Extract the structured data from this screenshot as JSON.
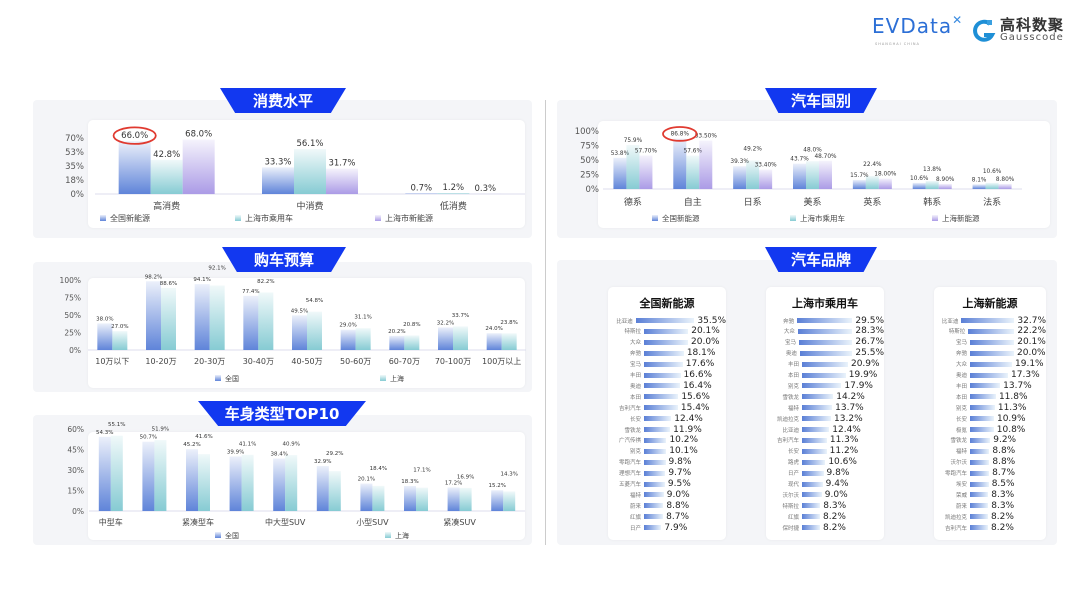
{
  "logos": {
    "evdata": "EVData",
    "evdata_sub": "SHANGHAI CHINA",
    "gausscode_cn": "高科数聚",
    "gausscode_en": "Gausscode"
  },
  "colors": {
    "banner": "#1238f0",
    "series1": "#5f84d9",
    "series2": "#86cbd3",
    "series3": "#ab9be6",
    "highlight": "#e03a30"
  },
  "chart_data": [
    {
      "id": "consumption",
      "title": "消费水平",
      "type": "bar",
      "yticks": [
        "0%",
        "18%",
        "35%",
        "53%",
        "70%"
      ],
      "ylim": [
        0,
        70
      ],
      "categories": [
        "高消费",
        "中消费",
        "低消费"
      ],
      "series": [
        {
          "name": "全国新能源",
          "values": [
            66.0,
            33.3,
            0.7
          ],
          "labels": [
            "66.0%",
            "33.3%",
            "0.7%"
          ]
        },
        {
          "name": "上海市乘用车",
          "values": [
            42.8,
            56.1,
            1.2
          ],
          "labels": [
            "42.8%",
            "56.1%",
            "1.2%"
          ]
        },
        {
          "name": "上海市新能源",
          "values": [
            68.0,
            31.7,
            0.3
          ],
          "labels": [
            "68.0%",
            "31.7%",
            "0.3%"
          ]
        }
      ],
      "highlight": {
        "series": 0,
        "category": 0
      }
    },
    {
      "id": "budget",
      "title": "购车预算",
      "type": "bar",
      "yticks": [
        "0%",
        "25%",
        "50%",
        "75%",
        "100%"
      ],
      "ylim": [
        0,
        100
      ],
      "categories": [
        "10万以下",
        "10-20万",
        "20-30万",
        "30-40万",
        "40-50万",
        "50-60万",
        "60-70万",
        "70-100万",
        "100万以上"
      ],
      "series": [
        {
          "name": "全国",
          "values": [
            38.0,
            98.2,
            94.1,
            77.4,
            49.5,
            29.0,
            20.2,
            32.2,
            24.0
          ],
          "labels": [
            "38.0%",
            "98.2%",
            "94.1%",
            "77.4%",
            "49.5%",
            "29.0%",
            "20.2%",
            "32.2%",
            "24.0%"
          ]
        },
        {
          "name": "上海",
          "values": [
            27.0,
            88.6,
            92.1,
            82.2,
            54.8,
            31.1,
            20.8,
            33.7,
            23.8
          ],
          "labels": [
            "27.0%",
            "88.6%",
            "92.1%",
            "82.2%",
            "54.8%",
            "31.1%",
            "20.8%",
            "33.7%",
            "23.8%"
          ]
        }
      ]
    },
    {
      "id": "bodytype",
      "title": "车身类型TOP10",
      "type": "bar",
      "yticks": [
        "0%",
        "15%",
        "30%",
        "45%",
        "60%"
      ],
      "ylim": [
        0,
        60
      ],
      "categories": [
        "中型车",
        "",
        "紧凑型车",
        "",
        "中大型SUV",
        "",
        "小型SUV",
        "",
        "紧凑SUV",
        ""
      ],
      "series": [
        {
          "name": "全国",
          "values": [
            54.3,
            50.7,
            45.2,
            39.9,
            38.4,
            32.9,
            20.1,
            18.3,
            17.2,
            15.2
          ],
          "labels": [
            "54.3%",
            "50.7%",
            "45.2%",
            "39.9%",
            "38.4%",
            "32.9%",
            "20.1%",
            "18.3%",
            "17.2%",
            "15.2%"
          ]
        },
        {
          "name": "上海",
          "values": [
            55.1,
            51.9,
            41.6,
            41.1,
            40.9,
            29.2,
            18.4,
            17.1,
            16.9,
            14.3
          ],
          "labels": [
            "55.1%",
            "51.9%",
            "41.6%",
            "41.1%",
            "40.9%",
            "29.2%",
            "18.4%",
            "17.1%",
            "16.9%",
            "14.3%"
          ]
        }
      ]
    },
    {
      "id": "origin",
      "title": "汽车国别",
      "type": "bar",
      "yticks": [
        "0%",
        "25%",
        "50%",
        "75%",
        "100%"
      ],
      "ylim": [
        0,
        100
      ],
      "categories": [
        "德系",
        "自主",
        "日系",
        "美系",
        "英系",
        "韩系",
        "法系"
      ],
      "series": [
        {
          "name": "全国新能源",
          "values": [
            53.8,
            86.8,
            39.3,
            43.7,
            15.7,
            10.6,
            8.1
          ],
          "labels": [
            "53.8%",
            "86.8%",
            "39.3%",
            "43.7%",
            "15.7%",
            "10.6%",
            "8.1%"
          ]
        },
        {
          "name": "上海市乘用车",
          "values": [
            75.9,
            57.6,
            49.2,
            48.0,
            22.4,
            13.8,
            10.6
          ],
          "labels": [
            "75.9%",
            "57.6%",
            "49.2%",
            "48.0%",
            "22.4%",
            "13.8%",
            "10.6%"
          ]
        },
        {
          "name": "上海新能源",
          "values": [
            57.7,
            83.5,
            33.4,
            48.7,
            18.0,
            8.9,
            8.8
          ],
          "labels": [
            "57.70%",
            "83.50%",
            "33.40%",
            "48.70%",
            "18.00%",
            "8.90%",
            "8.80%"
          ]
        }
      ],
      "highlight": {
        "series": 0,
        "category": 1
      }
    },
    {
      "id": "brands",
      "title": "汽车品牌",
      "type": "bar",
      "orientation": "horizontal",
      "lists": [
        {
          "title": "全国新能源",
          "items": [
            [
              "比亚迪",
              35.5
            ],
            [
              "特斯拉",
              20.1
            ],
            [
              "大众",
              20.0
            ],
            [
              "奔驰",
              18.1
            ],
            [
              "宝马",
              17.6
            ],
            [
              "丰田",
              16.6
            ],
            [
              "奥迪",
              16.4
            ],
            [
              "本田",
              15.6
            ],
            [
              "吉利汽车",
              15.4
            ],
            [
              "长安",
              12.4
            ],
            [
              "雪铁龙",
              11.9
            ],
            [
              "广汽传祺",
              10.2
            ],
            [
              "别克",
              10.1
            ],
            [
              "零跑汽车",
              9.8
            ],
            [
              "理想汽车",
              9.7
            ],
            [
              "五菱汽车",
              9.5
            ],
            [
              "福特",
              9.0
            ],
            [
              "蔚来",
              8.8
            ],
            [
              "红旗",
              8.7
            ],
            [
              "日产",
              7.9
            ]
          ]
        },
        {
          "title": "上海市乘用车",
          "items": [
            [
              "奔驰",
              29.5
            ],
            [
              "大众",
              28.3
            ],
            [
              "宝马",
              26.7
            ],
            [
              "奥迪",
              25.5
            ],
            [
              "丰田",
              20.9
            ],
            [
              "本田",
              19.9
            ],
            [
              "别克",
              17.9
            ],
            [
              "雪铁龙",
              14.2
            ],
            [
              "福特",
              13.7
            ],
            [
              "凯迪拉克",
              13.2
            ],
            [
              "比亚迪",
              12.4
            ],
            [
              "吉利汽车",
              11.3
            ],
            [
              "长安",
              11.2
            ],
            [
              "路虎",
              10.6
            ],
            [
              "日产",
              9.8
            ],
            [
              "现代",
              9.4
            ],
            [
              "沃尔沃",
              9.0
            ],
            [
              "特斯拉",
              8.3
            ],
            [
              "红旗",
              8.2
            ],
            [
              "保时捷",
              8.2
            ]
          ]
        },
        {
          "title": "上海新能源",
          "items": [
            [
              "比亚迪",
              32.7
            ],
            [
              "特斯拉",
              22.2
            ],
            [
              "宝马",
              20.1
            ],
            [
              "奔驰",
              20.0
            ],
            [
              "大众",
              19.1
            ],
            [
              "奥迪",
              17.3
            ],
            [
              "丰田",
              13.7
            ],
            [
              "本田",
              11.8
            ],
            [
              "别克",
              11.3
            ],
            [
              "长安",
              10.9
            ],
            [
              "极氪",
              10.8
            ],
            [
              "雪铁龙",
              9.2
            ],
            [
              "福特",
              8.8
            ],
            [
              "沃尔沃",
              8.8
            ],
            [
              "零跑汽车",
              8.7
            ],
            [
              "埃安",
              8.5
            ],
            [
              "荣威",
              8.3
            ],
            [
              "蔚来",
              8.3
            ],
            [
              "凯迪拉克",
              8.2
            ],
            [
              "吉利汽车",
              8.2
            ]
          ]
        }
      ]
    }
  ]
}
